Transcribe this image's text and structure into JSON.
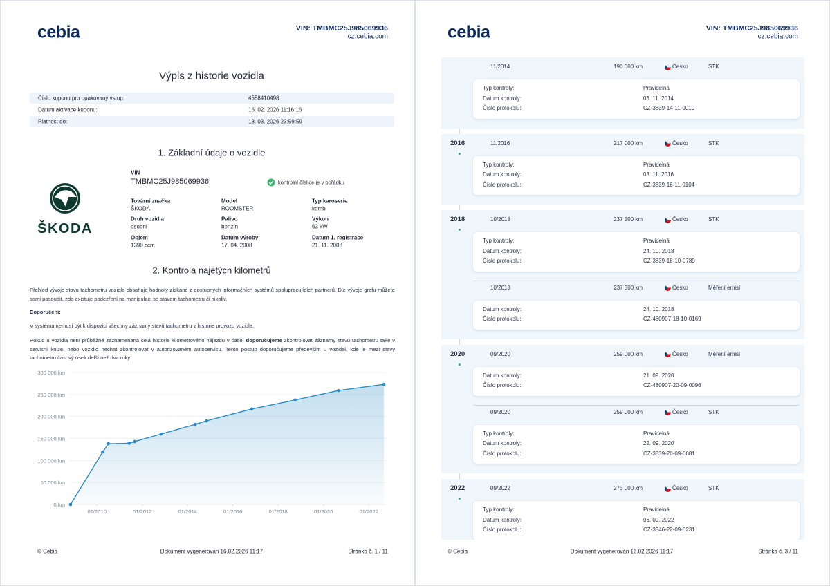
{
  "pages": [
    {
      "header": {
        "logo": "cebia",
        "vin": "VIN: TMBMC25J985069936",
        "site": "cz.cebia.com"
      },
      "title": "Výpis z historie vozidla",
      "coupon": [
        [
          "Číslo kuponu pro opakovaný vstup:",
          "4558410498"
        ],
        [
          "Datum aktivace kuponu:",
          "16. 02. 2026 11:16:16"
        ],
        [
          "Platnost do:",
          "18. 03. 2026 23:59:59"
        ]
      ],
      "section1": {
        "title": "1. Základní údaje o vozidle",
        "vin_label": "VIN",
        "vin": "TMBMC25J985069936",
        "vin_check": "kontrolní číslice je v pořádku",
        "brand_logo": "ŠKODA",
        "fields": [
          {
            "label": "Tovární značka",
            "value": "ŠKODA"
          },
          {
            "label": "Model",
            "value": "ROOMSTER"
          },
          {
            "label": "Typ karoserie",
            "value": "kombi"
          },
          {
            "label": "Druh vozidla",
            "value": "osobní"
          },
          {
            "label": "Palivo",
            "value": "benzín"
          },
          {
            "label": "Výkon",
            "value": "63 kW"
          },
          {
            "label": "Objem",
            "value": "1390 ccm"
          },
          {
            "label": "Datum výroby",
            "value": "17. 04. 2008"
          },
          {
            "label": "Datum 1. registrace",
            "value": "21. 11. 2008"
          }
        ]
      },
      "section2": {
        "title": "2. Kontrola najetých kilometrů",
        "intro": "Přehled vývoje stavu tachometru vozidla obsahuje hodnoty získané z dostupných informačních systémů spolupracujících partnerů. Dle vývoje grafu můžete sami posoudit, zda existuje podezření na manipulaci se stavem tachometru či nikoliv.",
        "recommendation_label": "Doporučení:",
        "note": "V systému nemusí být k dispozici všechny záznamy stavů tachometru z historie provozu vozidla.",
        "advice": [
          "Pokud u vozidla není průběžně zaznamenaná celá historie kilometrového nájezdu v čase, ",
          "doporučujeme",
          " zkontrolovat záznamy stavu tachometru také v servisní knize, nebo vozidlo nechat zkontrolovat v autorizovaném autoservisu. Tento postup doporučujeme především u vozidel, kde je mezi stavy tachometru časový úsek delší než dva roky."
        ]
      },
      "footer": {
        "copyright": "© Cebia",
        "generated": "Dokument vygenerován 16.02.2026 11:17",
        "page": "Stránka č. 1 / 11"
      }
    },
    {
      "header": {
        "logo": "cebia",
        "vin": "VIN: TMBMC25J985069936",
        "site": "cz.cebia.com"
      },
      "timeline": [
        {
          "records": [
            {
              "date": "11/2014",
              "km": "190 000 km",
              "country": "Česko",
              "type": "STK",
              "details": [
                [
                  "Typ kontroly:",
                  "Pravidelná"
                ],
                [
                  "Datum kontroly:",
                  "03. 11. 2014"
                ],
                [
                  "Číslo protokolu:",
                  "CZ-3839-14-11-0010"
                ]
              ]
            }
          ]
        },
        {
          "year": "2016",
          "records": [
            {
              "date": "11/2016",
              "km": "217 000 km",
              "country": "Česko",
              "type": "STK",
              "details": [
                [
                  "Typ kontroly:",
                  "Pravidelná"
                ],
                [
                  "Datum kontroly:",
                  "03. 11. 2016"
                ],
                [
                  "Číslo protokolu:",
                  "CZ-3839-16-11-0104"
                ]
              ]
            }
          ]
        },
        {
          "year": "2018",
          "records": [
            {
              "date": "10/2018",
              "km": "237 500 km",
              "country": "Česko",
              "type": "STK",
              "details": [
                [
                  "Typ kontroly:",
                  "Pravidelná"
                ],
                [
                  "Datum kontroly:",
                  "24. 10. 2018"
                ],
                [
                  "Číslo protokolu:",
                  "CZ-3839-18-10-0789"
                ]
              ]
            },
            {
              "date": "10/2018",
              "km": "237 500 km",
              "country": "Česko",
              "type": "Měření emisí",
              "details": [
                [
                  "Datum kontroly:",
                  "24. 10. 2018"
                ],
                [
                  "Číslo protokolu:",
                  "CZ-480907-18-10-0169"
                ]
              ]
            }
          ]
        },
        {
          "year": "2020",
          "records": [
            {
              "date": "09/2020",
              "km": "259 000 km",
              "country": "Česko",
              "type": "Měření emisí",
              "details": [
                [
                  "Datum kontroly:",
                  "21. 09. 2020"
                ],
                [
                  "Číslo protokolu:",
                  "CZ-480907-20-09-0096"
                ]
              ]
            },
            {
              "date": "09/2020",
              "km": "259 000 km",
              "country": "Česko",
              "type": "STK",
              "details": [
                [
                  "Typ kontroly:",
                  "Pravidelná"
                ],
                [
                  "Datum kontroly:",
                  "22. 09. 2020"
                ],
                [
                  "Číslo protokolu:",
                  "CZ-3839-20-09-0681"
                ]
              ]
            }
          ]
        },
        {
          "year": "2022",
          "records": [
            {
              "date": "09/2022",
              "km": "273 000 km",
              "country": "Česko",
              "type": "STK",
              "details": [
                [
                  "Typ kontroly:",
                  "Pravidelná"
                ],
                [
                  "Datum kontroly:",
                  "06. 09. 2022"
                ],
                [
                  "Číslo protokolu:",
                  "CZ-3846-22-09-0231"
                ]
              ]
            }
          ]
        }
      ],
      "footer": {
        "copyright": "© Cebia",
        "generated": "Dokument vygenerován 16.02.2026 11:17",
        "page": "Stránka č. 3 / 11"
      }
    }
  ],
  "chart_data": {
    "type": "line",
    "color": "#2a8ac6",
    "x": [
      "2008-11",
      "2010-04",
      "2010-07",
      "2011-06",
      "2011-09",
      "2012-11",
      "2014-05",
      "2014-11",
      "2016-11",
      "2018-10",
      "2020-09",
      "2022-09"
    ],
    "values": [
      0,
      119000,
      138000,
      139000,
      143000,
      160000,
      182000,
      190000,
      217000,
      237500,
      259000,
      273000
    ],
    "xlim": [
      "2008-11",
      "2022-09"
    ],
    "xticks": [
      {
        "value": "2010-01",
        "label": "01/2010"
      },
      {
        "value": "2012-01",
        "label": "01/2012"
      },
      {
        "value": "2014-01",
        "label": "01/2014"
      },
      {
        "value": "2016-01",
        "label": "01/2016"
      },
      {
        "value": "2018-01",
        "label": "01/2018"
      },
      {
        "value": "2020-01",
        "label": "01/2020"
      },
      {
        "value": "2022-01",
        "label": "01/2022"
      }
    ],
    "ylim": [
      0,
      300000
    ],
    "yticks": [
      {
        "value": 0,
        "label": "0 km"
      },
      {
        "value": 50000,
        "label": "50 000 km"
      },
      {
        "value": 100000,
        "label": "100 000 km"
      },
      {
        "value": 150000,
        "label": "150 000 km"
      },
      {
        "value": 200000,
        "label": "200 000 km"
      },
      {
        "value": 250000,
        "label": "250 000 km"
      },
      {
        "value": 300000,
        "label": "300 000 km"
      }
    ],
    "grid": true
  }
}
